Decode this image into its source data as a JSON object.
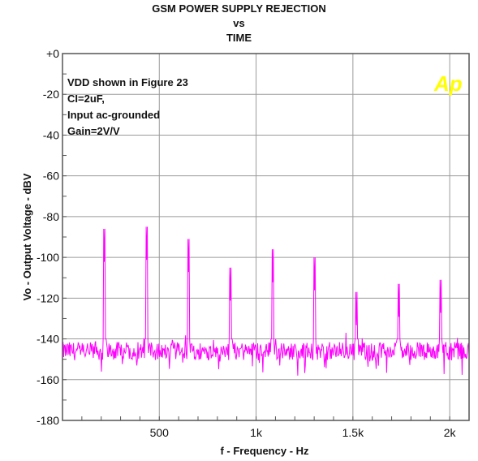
{
  "chart_data": {
    "type": "line",
    "title_lines": [
      "GSM POWER SUPPLY REJECTION",
      "vs",
      "TIME"
    ],
    "xlabel": "f - Frequency - Hz",
    "ylabel": "Vo - Output Voltage - dBV",
    "xlim": [
      0,
      2100
    ],
    "ylim": [
      -180,
      0
    ],
    "x_ticks": [
      500,
      1000,
      1500,
      2000
    ],
    "x_tick_labels": [
      "500",
      "1k",
      "1.5k",
      "2k"
    ],
    "y_ticks": [
      0,
      -20,
      -40,
      -60,
      -80,
      -100,
      -120,
      -140,
      -160,
      -180
    ],
    "y_tick_labels": [
      "+0",
      "-20",
      "-40",
      "-60",
      "-80",
      "-100",
      "-120",
      "-140",
      "-160",
      "-180"
    ],
    "annotations": [
      "VDD shown in Figure 23",
      "CI=2uF,",
      "Input ac-grounded",
      "Gain=2V/V"
    ],
    "logo": "Ap",
    "grid": true,
    "series": [
      {
        "color": "#ff00ff",
        "noise_floor": -146,
        "peaks": [
          {
            "x": 217,
            "y": -102
          },
          {
            "x": 434,
            "y": -101
          },
          {
            "x": 651,
            "y": -107
          },
          {
            "x": 868,
            "y": -121
          },
          {
            "x": 1085,
            "y": -112
          },
          {
            "x": 1302,
            "y": -116
          },
          {
            "x": 1519,
            "y": -133
          },
          {
            "x": 1736,
            "y": -129
          },
          {
            "x": 1953,
            "y": -127
          }
        ]
      }
    ],
    "colors": {
      "trace": "#ff00ff",
      "grid": "#9a9a9a",
      "frame": "#555555",
      "logo": "#ffff00"
    }
  }
}
